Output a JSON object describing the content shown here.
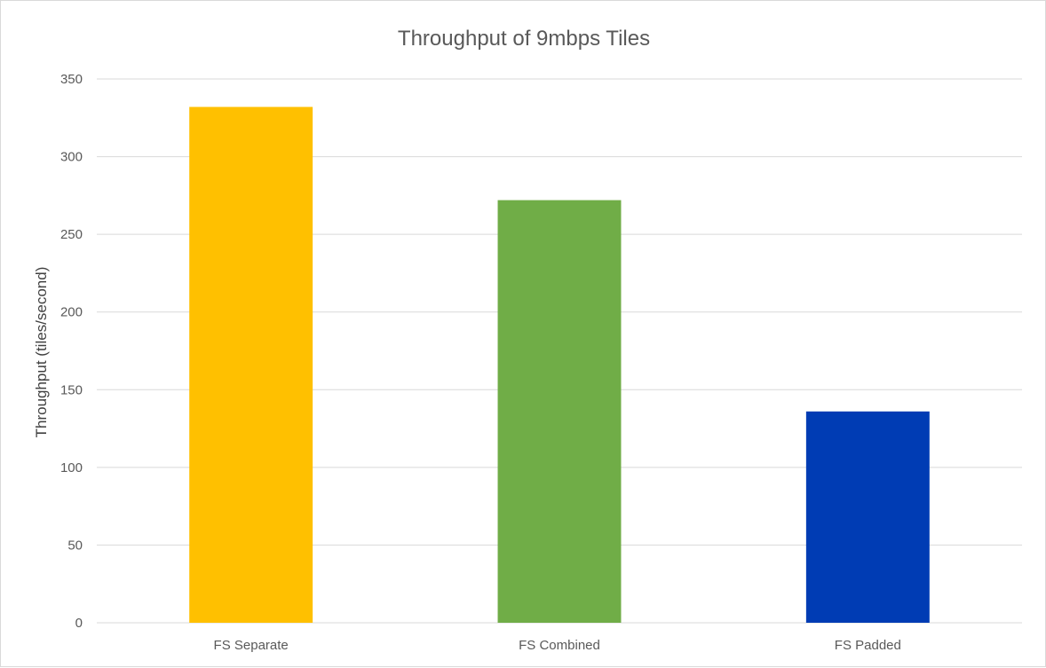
{
  "chart_data": {
    "type": "bar",
    "title": "Throughput of 9mbps Tiles",
    "xlabel": "",
    "ylabel": "Throughput (tiles/second)",
    "categories": [
      "FS Separate",
      "FS Combined",
      "FS Padded"
    ],
    "values": [
      332,
      272,
      136
    ],
    "colors": [
      "#FFC000",
      "#70AD47",
      "#003CB4"
    ],
    "ylim": [
      0,
      350
    ],
    "yticks": [
      0,
      50,
      100,
      150,
      200,
      250,
      300,
      350
    ],
    "grid": true,
    "legend": "none"
  }
}
